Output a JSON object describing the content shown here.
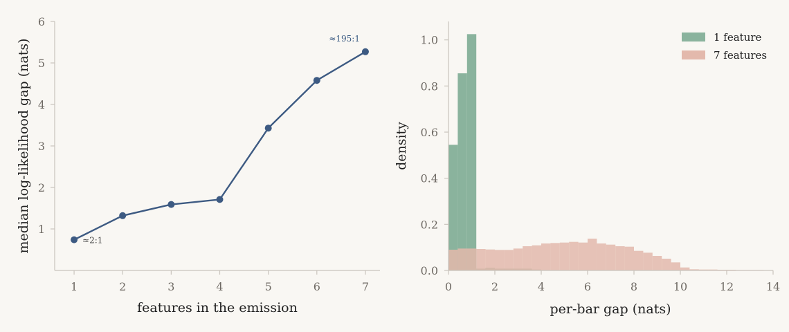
{
  "colors": {
    "background": "#f9f7f3",
    "line": "#3d5a82",
    "one_feature": "#8ab39d",
    "seven_features": "#e3b9ac",
    "spine": "#c9c4bd"
  },
  "chart_data": [
    {
      "type": "line",
      "xlabel": "features in the emission",
      "ylabel": "median log-likelihood gap (nats)",
      "xlim": [
        0.6,
        7.3
      ],
      "ylim": [
        0,
        6
      ],
      "x": [
        1,
        2,
        3,
        4,
        5,
        6,
        7
      ],
      "xticks": [
        "1",
        "2",
        "3",
        "4",
        "5",
        "6",
        "7"
      ],
      "yticks": [
        "1",
        "2",
        "3",
        "4",
        "5",
        "6"
      ],
      "series": [
        {
          "values": [
            0.74,
            1.32,
            1.59,
            1.71,
            3.43,
            4.58,
            5.27
          ]
        }
      ],
      "annotations": [
        {
          "text": "≈2:1",
          "x": 1,
          "y": 0.74
        },
        {
          "text": "≈195:1",
          "x": 7,
          "y": 5.27
        }
      ]
    },
    {
      "type": "bar",
      "subtype": "histogram",
      "xlabel": "per-bar gap (nats)",
      "ylabel": "density",
      "xlim": [
        0,
        14
      ],
      "ylim": [
        0,
        1.08
      ],
      "xticks": [
        "0",
        "2",
        "4",
        "6",
        "8",
        "10",
        "12",
        "14"
      ],
      "yticks": [
        "0.0",
        "0.2",
        "0.4",
        "0.6",
        "0.8",
        "1.0"
      ],
      "legend": "top-right",
      "series": [
        {
          "name": "1 feature",
          "bin_edges": [
            0,
            0.4,
            0.8,
            1.2,
            1.6,
            2.0,
            2.4,
            2.8,
            3.2,
            3.6,
            4.0
          ],
          "values": [
            0.545,
            0.855,
            1.025,
            0.008,
            0.012,
            0.008,
            0.008,
            0.008,
            0.008,
            0.004
          ]
        },
        {
          "name": "7 features",
          "bin_edges": [
            0,
            0.4,
            0.8,
            1.2,
            1.6,
            2.0,
            2.4,
            2.8,
            3.2,
            3.6,
            4.0,
            4.4,
            4.8,
            5.2,
            5.6,
            6.0,
            6.4,
            6.8,
            7.2,
            7.6,
            8.0,
            8.4,
            8.8,
            9.2,
            9.6,
            10.0,
            10.4,
            10.8,
            11.2,
            11.6,
            12.0,
            12.4,
            12.8,
            13.2,
            13.6
          ],
          "values": [
            0.09,
            0.095,
            0.095,
            0.093,
            0.091,
            0.089,
            0.089,
            0.095,
            0.105,
            0.109,
            0.117,
            0.119,
            0.121,
            0.124,
            0.121,
            0.138,
            0.117,
            0.112,
            0.105,
            0.103,
            0.085,
            0.077,
            0.063,
            0.051,
            0.035,
            0.013,
            0.005,
            0.004,
            0.004,
            0.003,
            0.003,
            0.002,
            0.002,
            0.002
          ]
        }
      ]
    }
  ]
}
